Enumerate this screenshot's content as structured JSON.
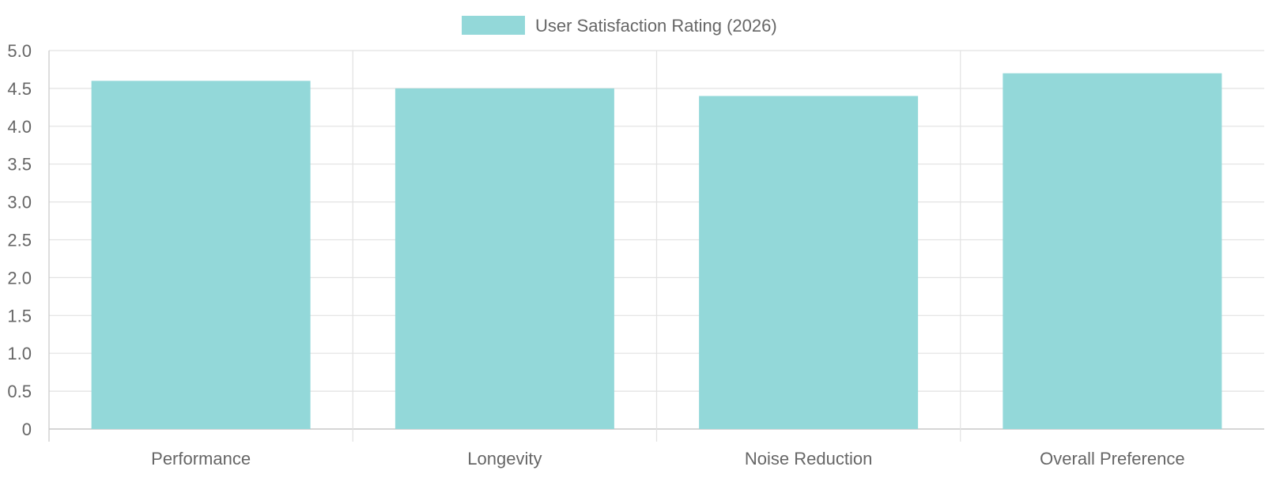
{
  "chart_data": {
    "type": "bar",
    "categories": [
      "Performance",
      "Longevity",
      "Noise Reduction",
      "Overall Preference"
    ],
    "series": [
      {
        "name": "User Satisfaction Rating (2026)",
        "values": [
          4.6,
          4.5,
          4.4,
          4.7
        ],
        "color": "#93d8d9"
      }
    ],
    "ylim": [
      0,
      5
    ],
    "yticks": [
      "0",
      "0.5",
      "1.0",
      "1.5",
      "2.0",
      "2.5",
      "3.0",
      "3.5",
      "4.0",
      "4.5",
      "5.0"
    ],
    "grid": true,
    "legend_position": "top-center"
  }
}
